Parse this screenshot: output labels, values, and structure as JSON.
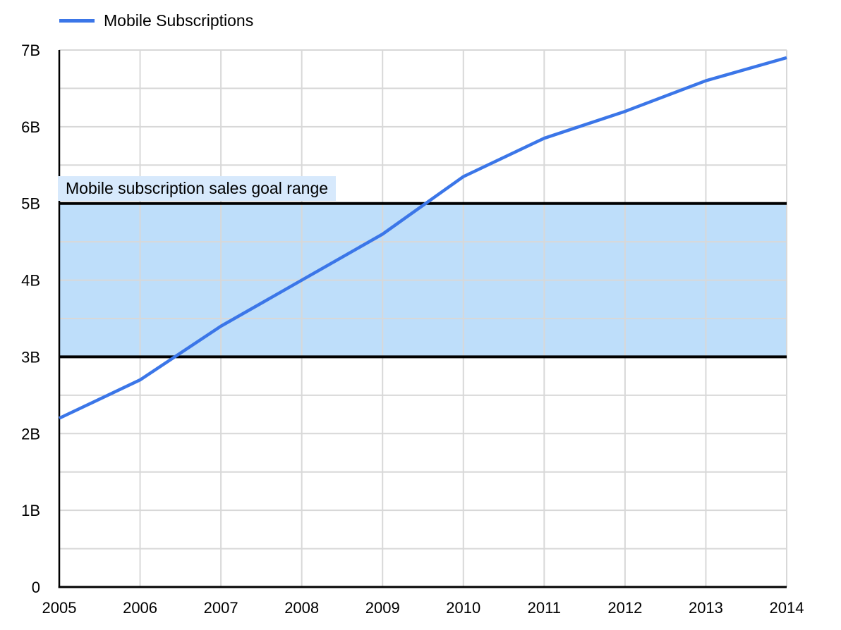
{
  "legend": {
    "label": "Mobile Subscriptions"
  },
  "colors": {
    "series_line": "#3b76e8",
    "band_fill": "#bedefa",
    "band_border": "#000000",
    "band_label_bg": "#d7e9fc",
    "gridline": "#d8d8d8",
    "axis": "#000000",
    "text": "#000000",
    "background": "#ffffff"
  },
  "chart_data": {
    "type": "line",
    "title": "",
    "xlabel": "",
    "ylabel": "",
    "x": [
      2005,
      2006,
      2007,
      2008,
      2009,
      2010,
      2011,
      2012,
      2013,
      2014
    ],
    "series": [
      {
        "name": "Mobile Subscriptions",
        "values": [
          2.2,
          2.7,
          3.4,
          4.0,
          4.6,
          5.35,
          5.85,
          6.2,
          6.6,
          6.9
        ]
      }
    ],
    "unit_suffix": "B",
    "ylim": [
      0,
      7
    ],
    "y_tick_values": [
      0,
      1,
      2,
      3,
      4,
      5,
      6,
      7
    ],
    "y_tick_labels": [
      "0",
      "1B",
      "2B",
      "3B",
      "4B",
      "5B",
      "6B",
      "7B"
    ],
    "y_minor_step": 0.5,
    "grid": true,
    "legend_position": "top-left",
    "band": {
      "from": 3,
      "to": 5,
      "label": "Mobile subscription sales goal range"
    }
  }
}
